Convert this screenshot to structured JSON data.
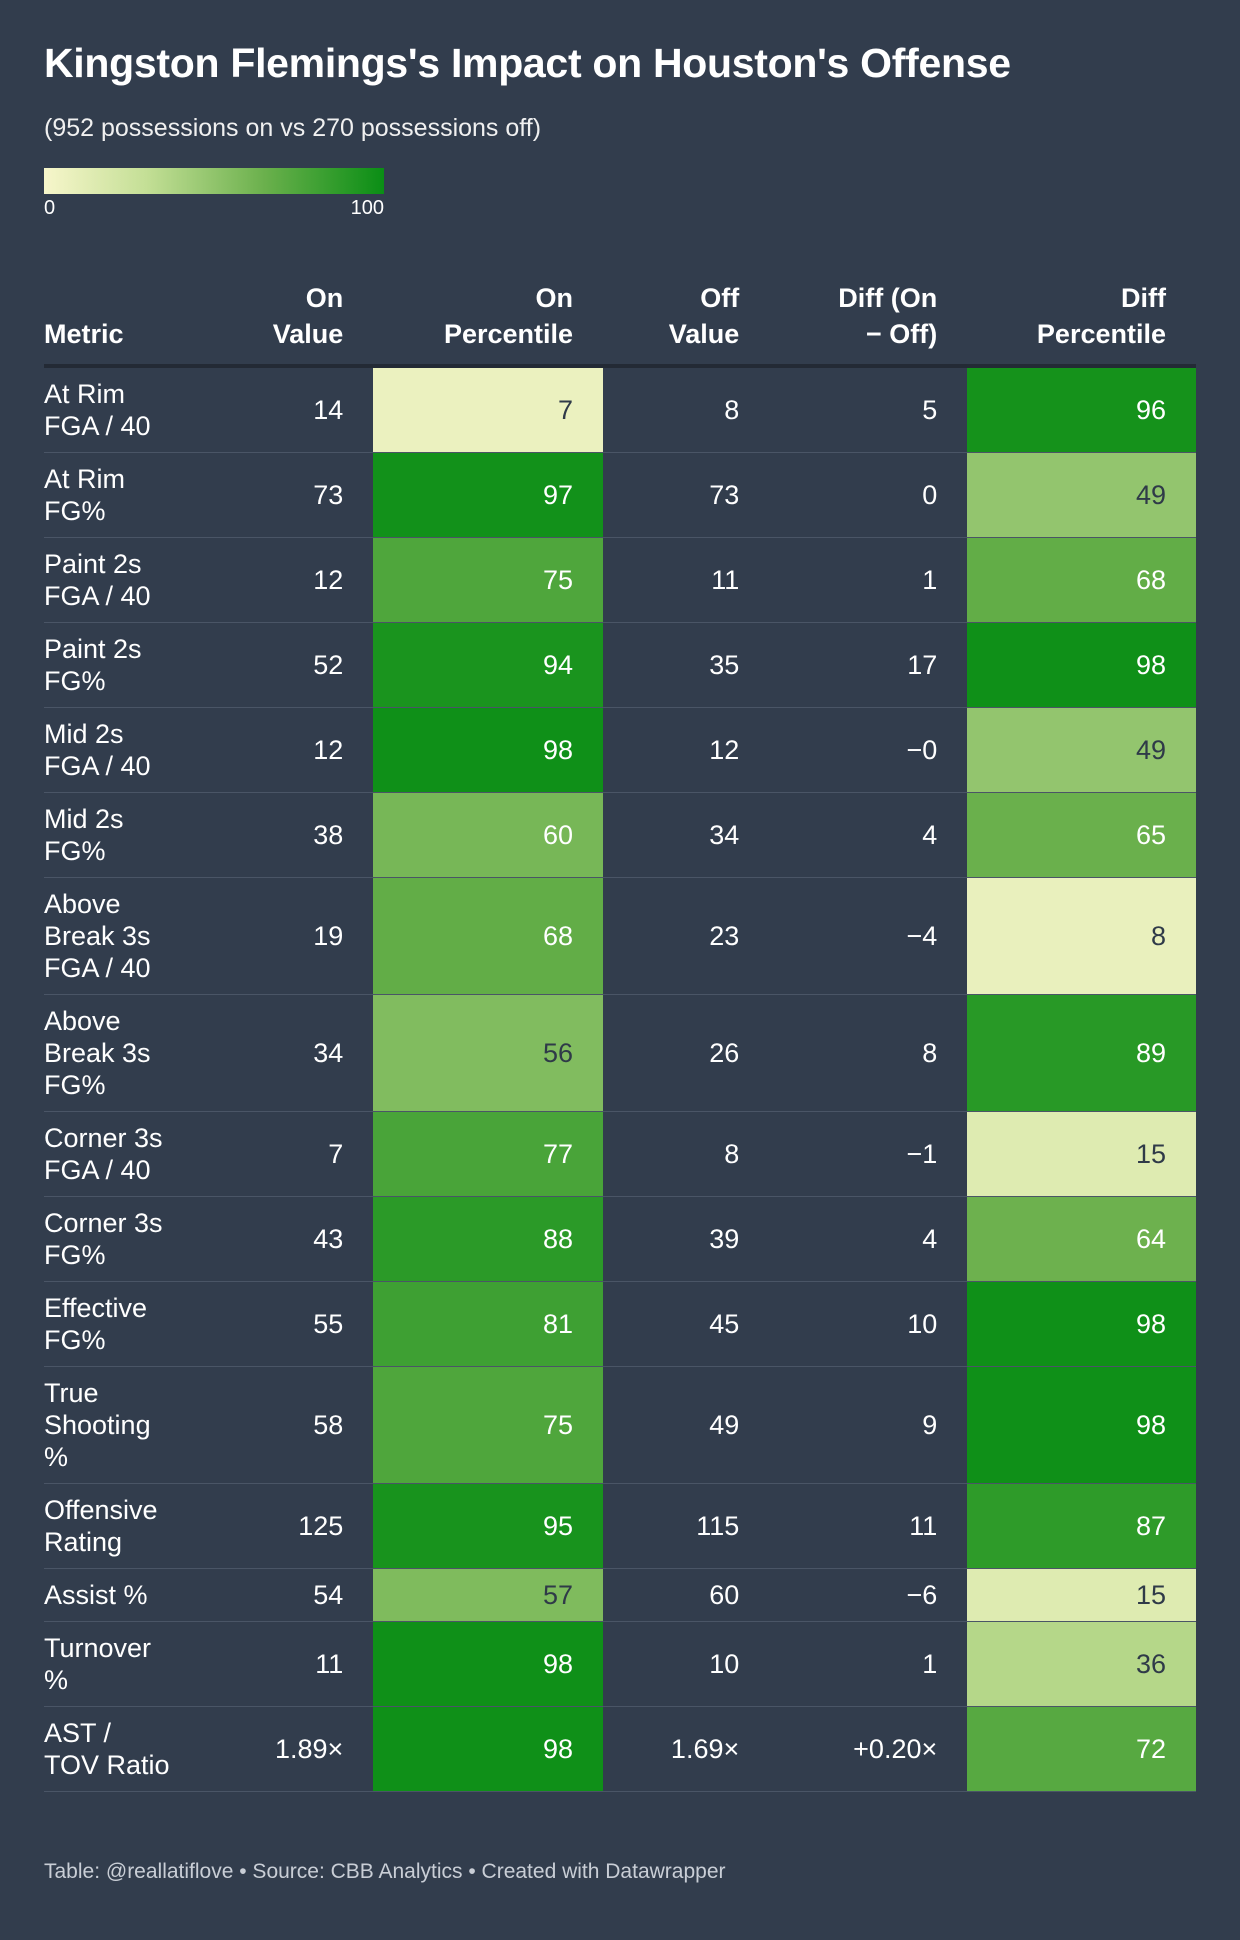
{
  "header": {
    "title": "Kingston Flemings's Impact on Houston's Offense",
    "subtitle": "(952 possessions on vs 270 possessions off)"
  },
  "legend": {
    "min_label": "0",
    "max_label": "100"
  },
  "colors": {
    "background": "#323d4d",
    "scale_low": "#f7f6cb",
    "scale_high": "#0a8e15"
  },
  "columns": {
    "metric": "Metric",
    "on_value": "On Value",
    "on_percentile": "On Percentile",
    "off_value": "Off Value",
    "diff": "Diff (On − Off)",
    "diff_percentile": "Diff Percentile"
  },
  "chart_data": {
    "type": "table",
    "title": "Kingston Flemings's Impact on Houston's Offense",
    "subtitle": "(952 possessions on vs 270 possessions off)",
    "color_scale": {
      "min": 0,
      "max": 100
    },
    "rows": [
      {
        "metric": "At Rim FGA / 40",
        "on_value": "14",
        "on_pct": 7,
        "off_value": "8",
        "diff": "5",
        "diff_pct": 96
      },
      {
        "metric": "At Rim FG%",
        "on_value": "73",
        "on_pct": 97,
        "off_value": "73",
        "diff": "0",
        "diff_pct": 49
      },
      {
        "metric": "Paint 2s FGA / 40",
        "on_value": "12",
        "on_pct": 75,
        "off_value": "11",
        "diff": "1",
        "diff_pct": 68
      },
      {
        "metric": "Paint 2s FG%",
        "on_value": "52",
        "on_pct": 94,
        "off_value": "35",
        "diff": "17",
        "diff_pct": 98
      },
      {
        "metric": "Mid 2s FGA / 40",
        "on_value": "12",
        "on_pct": 98,
        "off_value": "12",
        "diff": "−0",
        "diff_pct": 49
      },
      {
        "metric": "Mid 2s FG%",
        "on_value": "38",
        "on_pct": 60,
        "off_value": "34",
        "diff": "4",
        "diff_pct": 65
      },
      {
        "metric": "Above Break 3s FGA / 40",
        "on_value": "19",
        "on_pct": 68,
        "off_value": "23",
        "diff": "−4",
        "diff_pct": 8
      },
      {
        "metric": "Above Break 3s FG%",
        "on_value": "34",
        "on_pct": 56,
        "off_value": "26",
        "diff": "8",
        "diff_pct": 89
      },
      {
        "metric": "Corner 3s FGA / 40",
        "on_value": "7",
        "on_pct": 77,
        "off_value": "8",
        "diff": "−1",
        "diff_pct": 15
      },
      {
        "metric": "Corner 3s FG%",
        "on_value": "43",
        "on_pct": 88,
        "off_value": "39",
        "diff": "4",
        "diff_pct": 64
      },
      {
        "metric": "Effective FG%",
        "on_value": "55",
        "on_pct": 81,
        "off_value": "45",
        "diff": "10",
        "diff_pct": 98
      },
      {
        "metric": "True Shooting %",
        "on_value": "58",
        "on_pct": 75,
        "off_value": "49",
        "diff": "9",
        "diff_pct": 98
      },
      {
        "metric": "Offensive Rating",
        "on_value": "125",
        "on_pct": 95,
        "off_value": "115",
        "diff": "11",
        "diff_pct": 87
      },
      {
        "metric": "Assist %",
        "on_value": "54",
        "on_pct": 57,
        "off_value": "60",
        "diff": "−6",
        "diff_pct": 15
      },
      {
        "metric": "Turnover %",
        "on_value": "11",
        "on_pct": 98,
        "off_value": "10",
        "diff": "1",
        "diff_pct": 36
      },
      {
        "metric": "AST / TOV Ratio",
        "on_value": "1.89×",
        "on_pct": 98,
        "off_value": "1.69×",
        "diff": "+0.20×",
        "diff_pct": 72
      }
    ]
  },
  "footer": {
    "text": "Table: @reallatiflove • Source: CBB Analytics • Created with Datawrapper"
  }
}
